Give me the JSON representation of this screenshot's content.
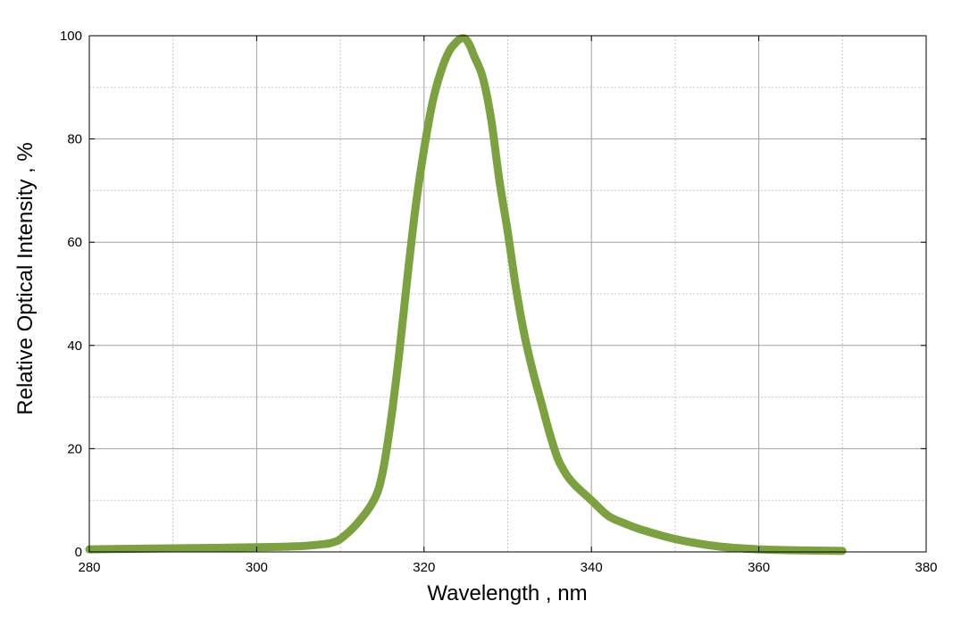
{
  "chart_data": {
    "type": "line",
    "title": "",
    "xlabel": "Wavelength , nm",
    "ylabel": "Relative Optical Intensity , %",
    "xlim": [
      280,
      380
    ],
    "ylim": [
      0,
      100
    ],
    "x_ticks": [
      "280",
      "300",
      "320",
      "340",
      "360",
      "380"
    ],
    "y_ticks": [
      "0",
      "20",
      "40",
      "60",
      "80",
      "100"
    ],
    "grid": "major solid, minor dotted",
    "legend": "none",
    "series": [
      {
        "color": "#7ba23f",
        "x": [
          280,
          290,
          300,
          305,
          308,
          309,
          310,
          312,
          314,
          315,
          316,
          317,
          318,
          319,
          320,
          321,
          322,
          323,
          324,
          324.5,
          325,
          325.5,
          326,
          327,
          328,
          329,
          330,
          331,
          332,
          333,
          334,
          335,
          336,
          337,
          338,
          340,
          342,
          344,
          346,
          350,
          355,
          360,
          365,
          370
        ],
        "y": [
          0.5,
          0.7,
          0.9,
          1.1,
          1.5,
          1.8,
          2.5,
          5.5,
          10,
          15,
          25,
          38,
          53,
          67,
          78,
          87,
          93,
          97,
          99,
          99.5,
          99.3,
          98,
          96,
          92,
          84,
          72,
          62,
          51,
          42,
          35,
          29,
          23,
          18,
          15,
          13,
          10,
          7,
          5.5,
          4.3,
          2.5,
          1.1,
          0.5,
          0.3,
          0.2
        ]
      }
    ]
  }
}
